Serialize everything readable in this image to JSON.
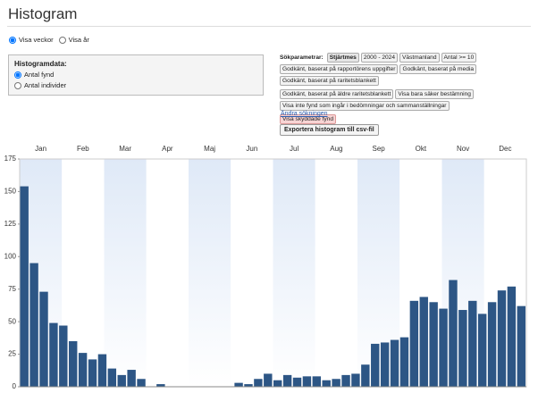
{
  "header": {
    "title": "Histogram"
  },
  "view_options": [
    {
      "label": "Visa veckor",
      "selected": true
    },
    {
      "label": "Visa år",
      "selected": false
    }
  ],
  "histogram_data": {
    "label": "Histogramdata:",
    "options": [
      {
        "label": "Antal fynd",
        "selected": true
      },
      {
        "label": "Antal individer",
        "selected": false
      }
    ]
  },
  "search": {
    "label": "Sökparametrar:",
    "tags": [
      "Stjärtmes",
      "2000 - 2024",
      "Västmanland",
      "Antal >= 10",
      "Godkänt, baserat på rapportörens uppgifter",
      "Godkänt, baserat på media",
      "Godkänt, baserat på raritetsblankett",
      "Godkänt, baserat på äldre raritetsblankett",
      "Visa bara säker bestämning",
      "Visa inte fynd som ingår i bedömningar och sammanställningar",
      "Visa skyddade fynd"
    ]
  },
  "links": {
    "change_search": "Ändra sökningen",
    "export_button": "Exportera histogram till csv-fil"
  },
  "chart_data": {
    "type": "bar",
    "color": "#2d5685",
    "months": [
      "Jan",
      "Feb",
      "Mar",
      "Apr",
      "Maj",
      "Jun",
      "Jul",
      "Aug",
      "Sep",
      "Okt",
      "Nov",
      "Dec"
    ],
    "categories": [
      null,
      null,
      null,
      null,
      null,
      null,
      null,
      null,
      null,
      null,
      null,
      null,
      null,
      null,
      null,
      null,
      null,
      null,
      null,
      null,
      null,
      null,
      null,
      null,
      null,
      null,
      null,
      null,
      null,
      null,
      null,
      null,
      null,
      null,
      null,
      null,
      null,
      null,
      null,
      null,
      null,
      null,
      null,
      null,
      null,
      null,
      null,
      null,
      null,
      null,
      null,
      null
    ],
    "values": [
      154,
      95,
      73,
      49,
      47,
      35,
      26,
      21,
      25,
      14,
      9,
      13,
      6,
      0,
      2,
      0,
      0,
      0,
      0,
      0,
      0,
      0,
      3,
      2,
      6,
      10,
      5,
      9,
      7,
      8,
      8,
      5,
      6,
      9,
      10,
      17,
      33,
      34,
      36,
      38,
      66,
      69,
      65,
      60,
      82,
      59,
      66,
      56,
      65,
      74,
      77,
      62
    ],
    "ylim": [
      0,
      175
    ],
    "yticks": [
      0,
      25,
      50,
      75,
      100,
      125,
      150,
      175
    ]
  }
}
